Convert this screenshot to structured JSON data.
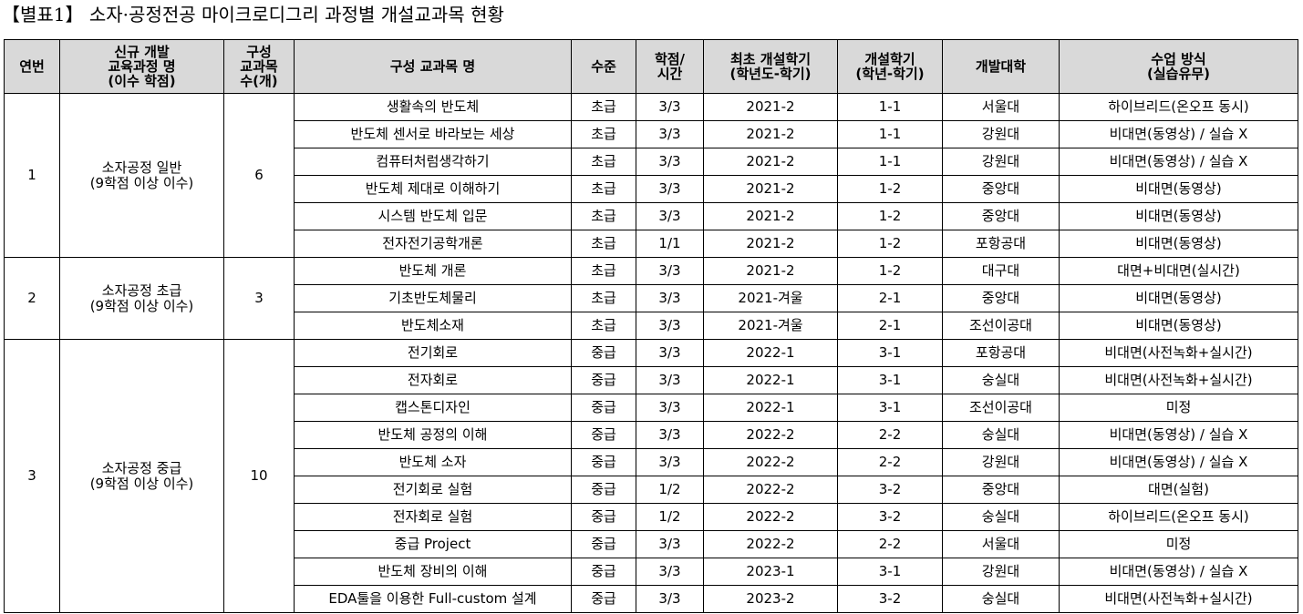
{
  "title": "【별표1】 소자·공정전공 마이크로디그리 과정별 개설교과목 현황",
  "headers": [
    "연번",
    "신규 개발\n교육과정 명\n(이수 학점)",
    "구성\n교과목\n수(개)",
    "구성 교과목 명",
    "수준",
    "학점/\n시간",
    "최초 개설학기\n(학년도-학기)",
    "개설학기\n(학년-학기)",
    "개발대학",
    "수업 방식\n(실습유무)"
  ],
  "groups": [
    {
      "no": "1",
      "name": "소자공정 일반\n(9학점 이상 이수)",
      "count": "6",
      "courses": [
        [
          "생활속의 반도체",
          "초급",
          "3/3",
          "2021-2",
          "1-1",
          "서울대",
          "하이브리드(온오프 동시)"
        ],
        [
          "반도체 센서로 바라보는 세상",
          "초급",
          "3/3",
          "2021-2",
          "1-1",
          "강원대",
          "비대면(동영상) / 실습 X"
        ],
        [
          "컴퓨터처럼생각하기",
          "초급",
          "3/3",
          "2021-2",
          "1-1",
          "강원대",
          "비대면(동영상) / 실습 X"
        ],
        [
          "반도체 제대로 이해하기",
          "초급",
          "3/3",
          "2021-2",
          "1-2",
          "중앙대",
          "비대면(동영상)"
        ],
        [
          "시스템 반도체 입문",
          "초급",
          "3/3",
          "2021-2",
          "1-2",
          "중앙대",
          "비대면(동영상)"
        ],
        [
          "전자전기공학개론",
          "초급",
          "1/1",
          "2021-2",
          "1-2",
          "포항공대",
          "비대면(동영상)"
        ]
      ]
    },
    {
      "no": "2",
      "name": "소자공정 초급\n(9학점 이상 이수)",
      "count": "3",
      "courses": [
        [
          "반도체 개론",
          "초급",
          "3/3",
          "2021-2",
          "1-2",
          "대구대",
          "대면+비대면(실시간)"
        ],
        [
          "기초반도체물리",
          "초급",
          "3/3",
          "2021-겨울",
          "2-1",
          "중앙대",
          "비대면(동영상)"
        ],
        [
          "반도체소재",
          "초급",
          "3/3",
          "2021-겨울",
          "2-1",
          "조선이공대",
          "비대면(동영상)"
        ]
      ]
    },
    {
      "no": "3",
      "name": "소자공정 중급\n(9학점 이상 이수)",
      "count": "10",
      "courses": [
        [
          "전기회로",
          "중급",
          "3/3",
          "2022-1",
          "3-1",
          "포항공대",
          "비대면(사전녹화+실시간)"
        ],
        [
          "전자회로",
          "중급",
          "3/3",
          "2022-1",
          "3-1",
          "숭실대",
          "비대면(사전녹화+실시간)"
        ],
        [
          "캡스톤디자인",
          "중급",
          "3/3",
          "2022-1",
          "3-1",
          "조선이공대",
          "미정"
        ],
        [
          "반도체 공정의 이해",
          "중급",
          "3/3",
          "2022-2",
          "2-2",
          "숭실대",
          "비대면(동영상) / 실습 X"
        ],
        [
          "반도체 소자",
          "중급",
          "3/3",
          "2022-2",
          "2-2",
          "강원대",
          "비대면(동영상) / 실습 X"
        ],
        [
          "전기회로 실험",
          "중급",
          "1/2",
          "2022-2",
          "3-2",
          "중앙대",
          "대면(실험)"
        ],
        [
          "전자회로 실험",
          "중급",
          "1/2",
          "2022-2",
          "3-2",
          "숭실대",
          "하이브리드(온오프 동시)"
        ],
        [
          "중급 Project",
          "중급",
          "3/3",
          "2022-2",
          "2-2",
          "서울대",
          "미정"
        ],
        [
          "반도체 장비의 이해",
          "중급",
          "3/3",
          "2023-1",
          "3-1",
          "강원대",
          "비대면(동영상) / 실습 X"
        ],
        [
          "EDA툴을 이용한 Full-custom 설계",
          "중급",
          "3/3",
          "2023-2",
          "3-2",
          "숭실대",
          "비대면(사전녹화+실시간)"
        ]
      ]
    }
  ]
}
